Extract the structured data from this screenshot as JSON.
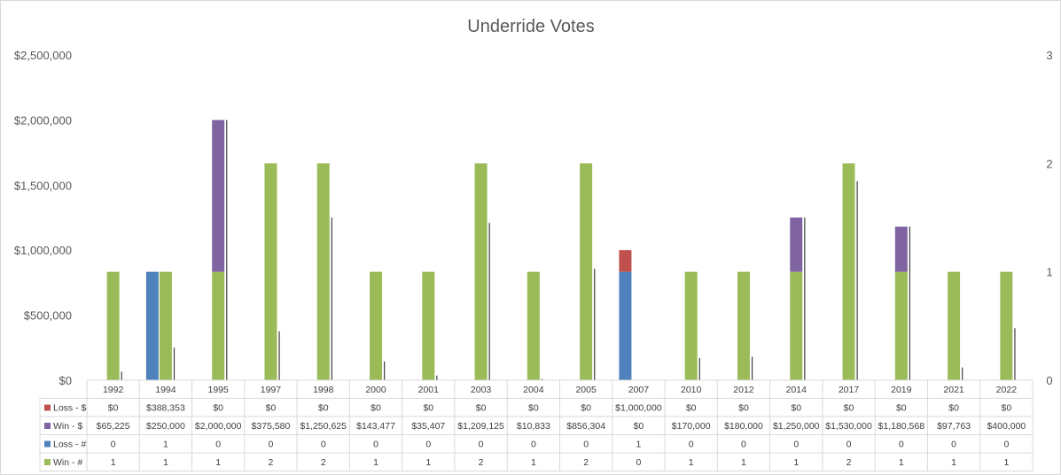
{
  "chart_data": {
    "type": "bar",
    "title": "Underride Votes",
    "categories": [
      "1992",
      "1994",
      "1995",
      "1997",
      "1998",
      "2000",
      "2001",
      "2003",
      "2004",
      "2005",
      "2007",
      "2010",
      "2012",
      "2014",
      "2017",
      "2019",
      "2021",
      "2022"
    ],
    "y_left": {
      "ticks": [
        0,
        500000,
        1000000,
        1500000,
        2000000,
        2500000
      ],
      "tick_labels": [
        "$0",
        "$500,000",
        "$1,000,000",
        "$1,500,000",
        "$2,000,000",
        "$2,500,000"
      ],
      "ylim": [
        0,
        2500000
      ]
    },
    "y_right": {
      "ticks": [
        0,
        1,
        2,
        3
      ],
      "tick_labels": [
        "0",
        "1",
        "2",
        "3"
      ],
      "ylim": [
        0,
        3
      ]
    },
    "series": [
      {
        "name": "Loss - $",
        "axis": "left",
        "color": "#c0504d",
        "values": [
          0,
          388353,
          0,
          0,
          0,
          0,
          0,
          0,
          0,
          0,
          1000000,
          0,
          0,
          0,
          0,
          0,
          0,
          0
        ],
        "labels": [
          "$0",
          "$388,353",
          "$0",
          "$0",
          "$0",
          "$0",
          "$0",
          "$0",
          "$0",
          "$0",
          "$1,000,000",
          "$0",
          "$0",
          "$0",
          "$0",
          "$0",
          "$0",
          "$0"
        ]
      },
      {
        "name": "Win - $",
        "axis": "left",
        "color": "#8064a2",
        "values": [
          65225,
          250000,
          2000000,
          375580,
          1250625,
          143477,
          35407,
          1209125,
          10833,
          856304,
          0,
          170000,
          180000,
          1250000,
          1530000,
          1180568,
          97763,
          400000
        ],
        "labels": [
          "$65,225",
          "$250,000",
          "$2,000,000",
          "$375,580",
          "$1,250,625",
          "$143,477",
          "$35,407",
          "$1,209,125",
          "$10,833",
          "$856,304",
          "$0",
          "$170,000",
          "$180,000",
          "$1,250,000",
          "$1,530,000",
          "$1,180,568",
          "$97,763",
          "$400,000"
        ]
      },
      {
        "name": "Loss - #",
        "axis": "right",
        "color": "#4f81bd",
        "values": [
          0,
          1,
          0,
          0,
          0,
          0,
          0,
          0,
          0,
          0,
          1,
          0,
          0,
          0,
          0,
          0,
          0,
          0
        ],
        "labels": [
          "0",
          "1",
          "0",
          "0",
          "0",
          "0",
          "0",
          "0",
          "0",
          "0",
          "1",
          "0",
          "0",
          "0",
          "0",
          "0",
          "0",
          "0"
        ]
      },
      {
        "name": "Win - #",
        "axis": "right",
        "color": "#9bbb59",
        "values": [
          1,
          1,
          1,
          2,
          2,
          1,
          1,
          2,
          1,
          2,
          0,
          1,
          1,
          1,
          2,
          1,
          1,
          1
        ],
        "labels": [
          "1",
          "1",
          "1",
          "2",
          "2",
          "1",
          "1",
          "2",
          "1",
          "2",
          "0",
          "1",
          "1",
          "1",
          "2",
          "1",
          "1",
          "1"
        ]
      }
    ],
    "legend": "data-table",
    "grid": false
  }
}
